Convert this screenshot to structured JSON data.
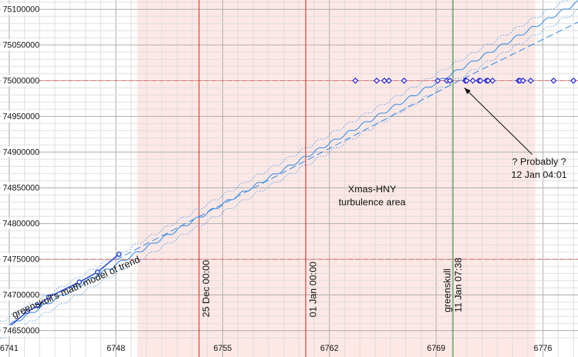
{
  "chart_data": {
    "type": "line",
    "title": "",
    "xlabel": "",
    "ylabel": "",
    "xlim": [
      6740.4,
      6778.3
    ],
    "ylim": [
      74640000,
      75113000
    ],
    "x_ticks": [
      6741,
      6748,
      6755,
      6762,
      6769,
      6776
    ],
    "x_tick_labels": [
      "6741",
      "6748",
      "6755",
      "6762",
      "6769",
      "6776"
    ],
    "y_ticks": [
      74650000,
      74700000,
      74750000,
      74800000,
      74850000,
      74900000,
      74950000,
      75000000,
      75050000,
      75100000
    ],
    "y_tick_labels": [
      "74650000",
      "74700000",
      "74750000",
      "74800000",
      "74850000",
      "74900000",
      "74950000",
      "75000000",
      "75050000",
      "75100000"
    ],
    "grid": true,
    "shaded_region": {
      "x_start": 6749.4,
      "x_end": 6775.5,
      "color": "#fde8e6"
    },
    "horizontal_lines": [
      {
        "y": 75000000,
        "color": "#e06060",
        "style": "dashed"
      },
      {
        "y": 74750000,
        "color": "#e06060",
        "style": "dashed"
      }
    ],
    "vertical_lines": [
      {
        "x": 6753.45,
        "color": "#e03020",
        "label": "25 Dec 00:00"
      },
      {
        "x": 6760.45,
        "color": "#e03020",
        "label": "01 Jan 00:00"
      },
      {
        "x": 6770.1,
        "color": "#2e8a30",
        "label_line1": "greenskull",
        "label_line2": "11 Jan 07:38"
      }
    ],
    "series": [
      {
        "name": "",
        "style": "solid-markers",
        "color": "#1a3fd6",
        "marker": "circle",
        "x": [
          6740.7,
          6742.2,
          6742.9,
          6743.6,
          6745.6,
          6746.8,
          6748.2
        ],
        "y": [
          74650000,
          74677000,
          74685000,
          74697000,
          74718000,
          74732000,
          74757000
        ]
      },
      {
        "name": "",
        "style": "diamond-markers",
        "color": "#1a1ad6",
        "marker": "diamond",
        "x": [
          6763.7,
          6765.1,
          6765.6,
          6765.9,
          6766.9,
          6769.1,
          6769.7,
          6769.9,
          6770.9,
          6771.0,
          6771.4,
          6771.8,
          6771.9,
          6772.3,
          6772.4,
          6772.7,
          6774.4,
          6774.5,
          6774.7,
          6775.2,
          6776.7,
          6778.0
        ],
        "y": [
          75000000,
          75000000,
          75000000,
          75000000,
          75000000,
          75000000,
          75000000,
          75000000,
          75000000,
          75000000,
          75000000,
          75000000,
          75000000,
          75000000,
          75000000,
          75000000,
          75000000,
          75000000,
          75000000,
          75000000,
          75000000,
          75000000
        ]
      },
      {
        "name": "",
        "style": "dashed",
        "color": "#3a8ee6",
        "x": [
          6748.0,
          6770.5,
          6778.3
        ],
        "y": [
          74749000,
          75000000,
          75082000
        ]
      }
    ],
    "trend_model": {
      "style": "solid wavy centre line with dotted band",
      "color": "#3a8ee6",
      "x": [
        6740.4,
        6778.3
      ],
      "y": [
        74650000,
        75110000
      ],
      "band": 12000
    },
    "annotations": [
      {
        "text": "greenskull's math model of trend",
        "x": 6741.3,
        "y": 74660000,
        "angle": -24
      },
      {
        "text_line1": "Xmas-HNY",
        "text_line2": "turbulence area",
        "x": 6764.8,
        "y": 74820000
      },
      {
        "text_line1": "? Probably ?",
        "text_line2": "12 Jan 04:01",
        "x": 6776.2,
        "y": 74865000,
        "arrow_to_x": 6770.85,
        "arrow_to_y": 74990000
      }
    ]
  }
}
